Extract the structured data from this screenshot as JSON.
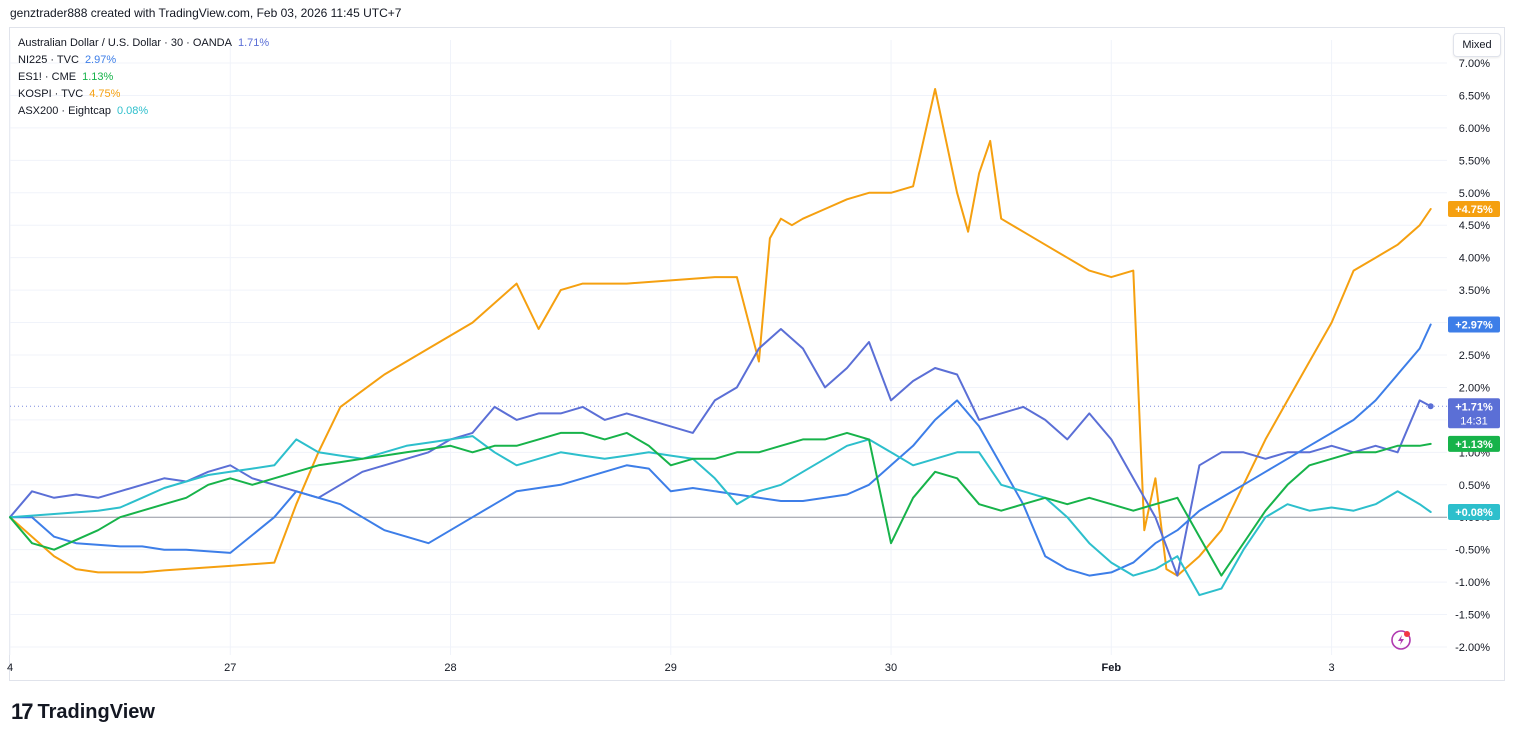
{
  "header": {
    "attribution": "genztrader888 created with TradingView.com, Feb 03, 2026 11:45 UTC+7"
  },
  "legend": [
    {
      "symbol": "Australian Dollar / U.S. Dollar · 30 · OANDA",
      "pct": "1.71%",
      "color": "#5b6fd6"
    },
    {
      "symbol": "NI225 · TVC",
      "pct": "2.97%",
      "color": "#3d7ee8"
    },
    {
      "symbol": "ES1! · CME",
      "pct": "1.13%",
      "color": "#17b34a"
    },
    {
      "symbol": "KOSPI · TVC",
      "pct": "4.75%",
      "color": "#f5a010"
    },
    {
      "symbol": "ASX200 · Eightcap",
      "pct": "0.08%",
      "color": "#2dbfcc"
    }
  ],
  "scale_button": "Mixed",
  "footer": {
    "brand": "TradingView",
    "mark": "17"
  },
  "chart_data": {
    "type": "line",
    "y_unit": "percent",
    "ylim": [
      -2.0,
      7.0
    ],
    "y_ticks": [
      "7.00%",
      "6.50%",
      "6.00%",
      "5.50%",
      "5.00%",
      "4.50%",
      "4.00%",
      "3.50%",
      "3.00%",
      "2.50%",
      "2.00%",
      "1.50%",
      "1.00%",
      "0.50%",
      "0.00%",
      "-0.50%",
      "-1.00%",
      "-1.50%",
      "-2.00%"
    ],
    "y_tick_values": [
      7.0,
      6.5,
      6.0,
      5.5,
      5.0,
      4.5,
      4.0,
      3.5,
      3.0,
      2.5,
      2.0,
      1.5,
      1.0,
      0.5,
      0.0,
      -0.5,
      -1.0,
      -1.5,
      -2.0
    ],
    "x_ticks": [
      "4",
      "27",
      "28",
      "29",
      "30",
      "Feb",
      "3"
    ],
    "x_tick_pos": [
      0,
      2,
      4,
      6,
      8,
      10,
      12
    ],
    "xlim": [
      0,
      13.03
    ],
    "price_labels": [
      {
        "text": "+4.75%",
        "value": 4.75,
        "color": "#f5a010"
      },
      {
        "text": "+2.97%",
        "value": 2.97,
        "color": "#3d7ee8"
      },
      {
        "text": "+1.71%",
        "sub": "14:31",
        "value": 1.71,
        "color": "#5b6fd6"
      },
      {
        "text": "+1.13%",
        "value": 1.13,
        "color": "#17b34a"
      },
      {
        "text": "+0.08%",
        "value": 0.08,
        "color": "#2dbfcc"
      }
    ],
    "series": [
      {
        "name": "Australian Dollar / U.S. Dollar · 30 · OANDA",
        "color": "#5b6fd6",
        "x": [
          0,
          0.2,
          0.4,
          0.6,
          0.8,
          1.0,
          1.2,
          1.4,
          1.6,
          1.8,
          2.0,
          2.2,
          2.4,
          2.6,
          2.8,
          3.0,
          3.2,
          3.4,
          3.6,
          3.8,
          4.0,
          4.2,
          4.4,
          4.6,
          4.8,
          5.0,
          5.2,
          5.4,
          5.6,
          5.8,
          6.0,
          6.2,
          6.4,
          6.6,
          6.8,
          7.0,
          7.2,
          7.4,
          7.6,
          7.8,
          8.0,
          8.2,
          8.4,
          8.6,
          8.8,
          9.0,
          9.2,
          9.4,
          9.6,
          9.8,
          10.0,
          10.2,
          10.4,
          10.6,
          10.8,
          11.0,
          11.2,
          11.4,
          11.6,
          11.8,
          12.0,
          12.2,
          12.4,
          12.6,
          12.8,
          12.9
        ],
        "y": [
          0.0,
          0.4,
          0.3,
          0.35,
          0.3,
          0.4,
          0.5,
          0.6,
          0.55,
          0.7,
          0.8,
          0.6,
          0.5,
          0.4,
          0.3,
          0.5,
          0.7,
          0.8,
          0.9,
          1.0,
          1.2,
          1.3,
          1.7,
          1.5,
          1.6,
          1.6,
          1.7,
          1.5,
          1.6,
          1.5,
          1.4,
          1.3,
          1.8,
          2.0,
          2.6,
          2.9,
          2.6,
          2.0,
          2.3,
          2.7,
          1.8,
          2.1,
          2.3,
          2.2,
          1.5,
          1.6,
          1.7,
          1.5,
          1.2,
          1.6,
          1.2,
          0.6,
          0.0,
          -0.9,
          0.8,
          1.0,
          1.0,
          0.9,
          1.0,
          1.0,
          1.1,
          1.0,
          1.1,
          1.0,
          1.8,
          1.71
        ]
      },
      {
        "name": "NI225 · TVC",
        "color": "#3d7ee8",
        "x": [
          0,
          0.2,
          0.4,
          0.6,
          1.0,
          1.2,
          1.4,
          1.6,
          2.0,
          2.4,
          2.6,
          2.8,
          3.0,
          3.2,
          3.4,
          3.6,
          3.8,
          4.0,
          4.2,
          4.4,
          4.6,
          4.8,
          5.0,
          5.2,
          5.4,
          5.6,
          5.8,
          6.0,
          6.2,
          6.4,
          6.6,
          6.8,
          7.0,
          7.2,
          7.4,
          7.6,
          7.8,
          8.0,
          8.2,
          8.4,
          8.6,
          8.8,
          9.0,
          9.2,
          9.4,
          9.6,
          9.8,
          10.0,
          10.2,
          10.4,
          10.6,
          10.8,
          11.0,
          11.2,
          11.4,
          11.6,
          11.8,
          12.0,
          12.2,
          12.4,
          12.6,
          12.8,
          12.9
        ],
        "y": [
          0.0,
          0.0,
          -0.3,
          -0.4,
          -0.45,
          -0.45,
          -0.5,
          -0.5,
          -0.55,
          0.0,
          0.4,
          0.3,
          0.2,
          0.0,
          -0.2,
          -0.3,
          -0.4,
          -0.2,
          0.0,
          0.2,
          0.4,
          0.45,
          0.5,
          0.6,
          0.7,
          0.8,
          0.75,
          0.4,
          0.45,
          0.4,
          0.35,
          0.3,
          0.25,
          0.25,
          0.3,
          0.35,
          0.5,
          0.8,
          1.1,
          1.5,
          1.8,
          1.4,
          0.8,
          0.2,
          -0.6,
          -0.8,
          -0.9,
          -0.85,
          -0.7,
          -0.4,
          -0.2,
          0.1,
          0.3,
          0.5,
          0.7,
          0.9,
          1.1,
          1.3,
          1.5,
          1.8,
          2.2,
          2.6,
          2.97
        ]
      },
      {
        "name": "ES1! · CME",
        "color": "#17b34a",
        "x": [
          0,
          0.2,
          0.4,
          0.6,
          0.8,
          1.0,
          1.2,
          1.4,
          1.6,
          1.8,
          2.0,
          2.2,
          2.4,
          2.6,
          2.8,
          3.0,
          3.2,
          3.4,
          3.6,
          3.8,
          4.0,
          4.2,
          4.4,
          4.6,
          4.8,
          5.0,
          5.2,
          5.4,
          5.6,
          5.8,
          6.0,
          6.2,
          6.4,
          6.6,
          6.8,
          7.0,
          7.2,
          7.4,
          7.6,
          7.8,
          8.0,
          8.2,
          8.4,
          8.6,
          8.8,
          9.0,
          9.2,
          9.4,
          9.6,
          9.8,
          10.0,
          10.2,
          10.4,
          10.6,
          10.8,
          11.0,
          11.2,
          11.4,
          11.6,
          11.8,
          12.0,
          12.2,
          12.4,
          12.6,
          12.8,
          12.9
        ],
        "y": [
          0.0,
          -0.4,
          -0.5,
          -0.35,
          -0.2,
          0.0,
          0.1,
          0.2,
          0.3,
          0.5,
          0.6,
          0.5,
          0.6,
          0.7,
          0.8,
          0.85,
          0.9,
          0.95,
          1.0,
          1.05,
          1.1,
          1.0,
          1.1,
          1.1,
          1.2,
          1.3,
          1.3,
          1.2,
          1.3,
          1.1,
          0.8,
          0.9,
          0.9,
          1.0,
          1.0,
          1.1,
          1.2,
          1.2,
          1.3,
          1.2,
          -0.4,
          0.3,
          0.7,
          0.6,
          0.2,
          0.1,
          0.2,
          0.3,
          0.2,
          0.3,
          0.2,
          0.1,
          0.2,
          0.3,
          -0.3,
          -0.9,
          -0.4,
          0.1,
          0.5,
          0.8,
          0.9,
          1.0,
          1.0,
          1.1,
          1.1,
          1.13
        ]
      },
      {
        "name": "KOSPI · TVC",
        "color": "#f5a010",
        "x": [
          0,
          0.2,
          0.4,
          0.6,
          0.8,
          1.0,
          1.2,
          1.4,
          2.0,
          2.4,
          2.6,
          2.8,
          3.0,
          3.4,
          3.8,
          4.2,
          4.6,
          4.8,
          5.0,
          5.2,
          5.4,
          5.6,
          6.0,
          6.4,
          6.6,
          6.8,
          6.9,
          7.0,
          7.1,
          7.2,
          7.4,
          7.6,
          7.8,
          8.0,
          8.2,
          8.4,
          8.6,
          8.7,
          8.8,
          8.9,
          9.0,
          9.2,
          9.4,
          9.6,
          9.8,
          10.0,
          10.2,
          10.3,
          10.4,
          10.5,
          10.6,
          10.8,
          11.0,
          11.2,
          11.4,
          11.6,
          11.8,
          12.0,
          12.2,
          12.4,
          12.6,
          12.8,
          12.9
        ],
        "y": [
          0.0,
          -0.3,
          -0.6,
          -0.8,
          -0.85,
          -0.85,
          -0.85,
          -0.82,
          -0.75,
          -0.7,
          0.2,
          1.0,
          1.7,
          2.2,
          2.6,
          3.0,
          3.6,
          2.9,
          3.5,
          3.6,
          3.6,
          3.6,
          3.65,
          3.7,
          3.7,
          2.4,
          4.3,
          4.6,
          4.5,
          4.6,
          4.75,
          4.9,
          5.0,
          5.0,
          5.1,
          6.6,
          5.0,
          4.4,
          5.3,
          5.8,
          4.6,
          4.4,
          4.2,
          4.0,
          3.8,
          3.7,
          3.8,
          -0.2,
          0.6,
          -0.8,
          -0.9,
          -0.6,
          -0.2,
          0.5,
          1.2,
          1.8,
          2.4,
          3.0,
          3.8,
          4.0,
          4.2,
          4.5,
          4.75
        ]
      },
      {
        "name": "ASX200 · Eightcap",
        "color": "#2dbfcc",
        "x": [
          0,
          0.4,
          0.8,
          1.0,
          1.2,
          1.4,
          1.6,
          1.8,
          2.0,
          2.2,
          2.4,
          2.6,
          2.8,
          3.0,
          3.2,
          3.4,
          3.6,
          3.8,
          4.0,
          4.2,
          4.4,
          4.6,
          4.8,
          5.0,
          5.2,
          5.4,
          5.6,
          5.8,
          6.0,
          6.2,
          6.4,
          6.6,
          6.8,
          7.0,
          7.2,
          7.4,
          7.6,
          7.8,
          8.0,
          8.2,
          8.4,
          8.6,
          8.8,
          9.0,
          9.2,
          9.4,
          9.6,
          9.8,
          10.0,
          10.2,
          10.4,
          10.6,
          10.8,
          11.0,
          11.2,
          11.4,
          11.6,
          11.8,
          12.0,
          12.2,
          12.4,
          12.6,
          12.8,
          12.9
        ],
        "y": [
          0.0,
          0.05,
          0.1,
          0.15,
          0.3,
          0.45,
          0.55,
          0.65,
          0.7,
          0.75,
          0.8,
          1.2,
          1.0,
          0.95,
          0.9,
          1.0,
          1.1,
          1.15,
          1.2,
          1.25,
          1.0,
          0.8,
          0.9,
          1.0,
          0.95,
          0.9,
          0.95,
          1.0,
          0.95,
          0.9,
          0.6,
          0.2,
          0.4,
          0.5,
          0.7,
          0.9,
          1.1,
          1.2,
          1.0,
          0.8,
          0.9,
          1.0,
          1.0,
          0.5,
          0.4,
          0.3,
          0.0,
          -0.4,
          -0.7,
          -0.9,
          -0.8,
          -0.6,
          -1.2,
          -1.1,
          -0.5,
          0.0,
          0.2,
          0.1,
          0.15,
          0.1,
          0.2,
          0.4,
          0.2,
          0.08
        ]
      }
    ]
  }
}
